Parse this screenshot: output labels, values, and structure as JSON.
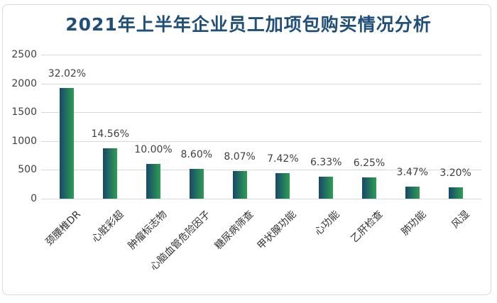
{
  "chart": {
    "title": "2021年上半年企业员工加项包购买情况分析",
    "title_color": "#1F4E79"
  },
  "chart_data": {
    "type": "bar",
    "title": "2021年上半年企业员工加项包购买情况分析",
    "categories": [
      "颈腰椎DR",
      "心脏彩超",
      "肿瘤标志物",
      "心脑血管危险因子",
      "糖尿病筛查",
      "甲状腺功能",
      "心功能",
      "乙肝检查",
      "肺功能",
      "风湿"
    ],
    "values": [
      1921,
      874,
      600,
      516,
      484,
      445,
      380,
      375,
      208,
      192
    ],
    "value_labels": [
      "32.02%",
      "14.56%",
      "10.00%",
      "8.60%",
      "8.07%",
      "7.42%",
      "6.33%",
      "6.25%",
      "3.47%",
      "3.20%"
    ],
    "xlabel": "",
    "ylabel": "",
    "ylim": [
      0,
      2500
    ],
    "y_ticks": [
      0,
      500,
      1000,
      1500,
      2000,
      2500
    ],
    "grid": true,
    "legend": false,
    "colors": {
      "bar_gradient_start": "#17486A",
      "bar_gradient_end": "#2F9D53",
      "gridline": "#d9d9d9",
      "axis_text": "#404040",
      "category_text": "#333333",
      "title": "#1F4E79"
    }
  }
}
